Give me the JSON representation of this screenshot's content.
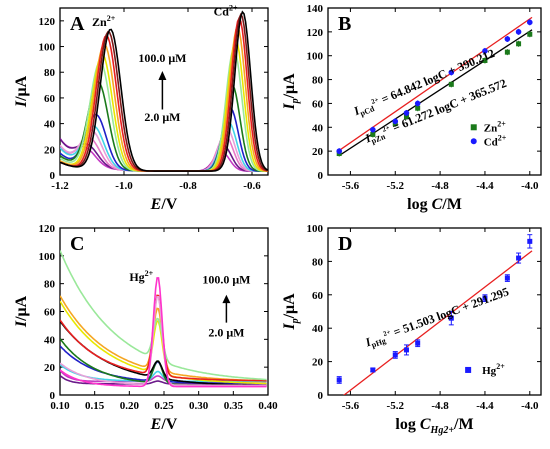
{
  "chart_data": [
    {
      "panel": "A",
      "type": "line",
      "xlabel_var": "E",
      "xlabel_unit": "/V",
      "ylabel_var": "I",
      "ylabel_unit": "/μA",
      "xlim": [
        -1.2,
        -0.55
      ],
      "ylim": [
        0,
        130
      ],
      "xticks": [
        -1.2,
        -1.0,
        -0.8,
        -0.6
      ],
      "xtick_labels": [
        "-1.2",
        "-1.0",
        "-0.8",
        "-0.6"
      ],
      "yticks": [
        0,
        20,
        40,
        60,
        80,
        100,
        120
      ],
      "yticks_labels": [
        "0",
        "20",
        "40",
        "60",
        "80",
        "100",
        "120"
      ],
      "peak_labels": [
        {
          "ion": "Zn",
          "charge": "2+",
          "x": -1.1,
          "y": 116
        },
        {
          "ion": "Cd",
          "charge": "2+",
          "x": -0.72,
          "y": 124
        }
      ],
      "conc_high": "100.0 μM",
      "conc_low": "2.0 μM",
      "series": [
        {
          "color": "#c43bc4",
          "p1": 12,
          "p2": 15,
          "b1": 25,
          "b2": 1
        },
        {
          "color": "#6b1a8a",
          "p1": 15,
          "p2": 20,
          "b1": 25,
          "b2": 1
        },
        {
          "color": "#e879c8",
          "p1": 22,
          "p2": 28,
          "b1": 18,
          "b2": 1
        },
        {
          "color": "#e8a0d8",
          "p1": 28,
          "p2": 33,
          "b1": 20,
          "b2": 1
        },
        {
          "color": "#43d4e8",
          "p1": 32,
          "p2": 38,
          "b1": 18,
          "b2": 1
        },
        {
          "color": "#2020c8",
          "p1": 42,
          "p2": 49,
          "b1": 14,
          "b2": 1
        },
        {
          "color": "#1b7a1b",
          "p1": 68,
          "p2": 67,
          "b1": 12,
          "b2": 1
        },
        {
          "color": "#9ae89a",
          "p1": 84,
          "p2": 95,
          "b1": 10,
          "b2": 1
        },
        {
          "color": "#e8e800",
          "p1": 90,
          "p2": 102,
          "b1": 8,
          "b2": 1
        },
        {
          "color": "#f5a623",
          "p1": 98,
          "p2": 112,
          "b1": 8,
          "b2": 1
        },
        {
          "color": "#e82020",
          "p1": 105,
          "p2": 119,
          "b1": 7,
          "b2": 1
        },
        {
          "color": "#7a1a1a",
          "p1": 108,
          "p2": 122,
          "b1": 7,
          "b2": 1
        },
        {
          "color": "#000000",
          "p1": 110,
          "p2": 124,
          "b1": 7,
          "b2": 1
        }
      ]
    },
    {
      "panel": "B",
      "type": "scatter",
      "xlabel_prefix": "log ",
      "xlabel_var": "C",
      "xlabel_unit": "/M",
      "ylabel_var": "I",
      "ylabel_sub": "p",
      "ylabel_unit": "/μA",
      "xlim": [
        -5.8,
        -3.9
      ],
      "ylim": [
        0,
        140
      ],
      "xticks": [
        -5.6,
        -5.2,
        -4.8,
        -4.4,
        -4.0
      ],
      "xtick_labels": [
        "-5.6",
        "-5.2",
        "-4.8",
        "-4.4",
        "-4.0"
      ],
      "yticks": [
        0,
        20,
        40,
        60,
        80,
        100,
        120,
        140
      ],
      "yticks_labels": [
        "0",
        "20",
        "40",
        "60",
        "80",
        "100",
        "120",
        "140"
      ],
      "equations": [
        {
          "prefix": "I",
          "sub": "pCd",
          "sup": "2+",
          "text": " = 64.842 logC + 390.212"
        },
        {
          "prefix": "I",
          "sub": "pZn",
          "sup": "2+",
          "text": " = 61.272 logC + 365.572"
        }
      ],
      "series": [
        {
          "name": "Zn",
          "sup": "2+",
          "color": "#1b7a1b",
          "marker": "square",
          "x": [
            -5.7,
            -5.4,
            -5.2,
            -5.1,
            -5.0,
            -4.7,
            -4.4,
            -4.2,
            -4.1,
            -4.0
          ],
          "y": [
            18,
            34,
            43,
            49,
            56,
            76,
            96,
            103,
            110,
            118
          ],
          "fit": [
            61.272,
            365.572
          ]
        },
        {
          "name": "Cd",
          "sup": "2+",
          "color": "#1a1aff",
          "marker": "circle",
          "x": [
            -5.7,
            -5.4,
            -5.2,
            -5.1,
            -5.0,
            -4.7,
            -4.4,
            -4.2,
            -4.1,
            -4.0
          ],
          "y": [
            20,
            38,
            45,
            52,
            60,
            86,
            104,
            114,
            120,
            128
          ],
          "fit": [
            64.842,
            390.212
          ]
        }
      ]
    },
    {
      "panel": "C",
      "type": "line",
      "xlabel_var": "E",
      "xlabel_unit": "/V",
      "ylabel_var": "I",
      "ylabel_unit": "/μA",
      "xlim": [
        0.1,
        0.4
      ],
      "ylim": [
        0,
        120
      ],
      "xticks": [
        0.1,
        0.15,
        0.2,
        0.25,
        0.3,
        0.35,
        0.4
      ],
      "xtick_labels": [
        "0.10",
        "0.15",
        "0.20",
        "0.25",
        "0.30",
        "0.35",
        "0.40"
      ],
      "yticks": [
        0,
        20,
        40,
        60,
        80,
        100,
        120
      ],
      "yticks_labels": [
        "0",
        "20",
        "40",
        "60",
        "80",
        "100",
        "120"
      ],
      "peak_label": {
        "ion": "Hg",
        "charge": "2+",
        "x": 0.2,
        "y": 82
      },
      "conc_high": "100.0 μM",
      "conc_low": "2.0 μM",
      "series": [
        {
          "color": "#6b1a8a",
          "p": 2,
          "b": 14,
          "k": 0.003
        },
        {
          "color": "#c43bc4",
          "p": 4,
          "b": 16,
          "k": 0.003
        },
        {
          "color": "#43d4e8",
          "p": 7,
          "b": 20,
          "k": 0.02
        },
        {
          "color": "#2020c8",
          "p": 14,
          "b": 35,
          "k": 0.04
        },
        {
          "color": "#1b7a1b",
          "p": 16,
          "b": 42,
          "k": 0.04
        },
        {
          "color": "#000000",
          "p": 12,
          "b": 55,
          "k": 0.06
        },
        {
          "color": "#e8e800",
          "p": 38,
          "b": 68,
          "k": 0.06
        },
        {
          "color": "#f5a623",
          "p": 45,
          "b": 70,
          "k": 0.06
        },
        {
          "color": "#e82020",
          "p": 58,
          "b": 52,
          "k": 0.05
        },
        {
          "color": "#9ae89a",
          "p": 30,
          "b": 103,
          "k": 0.07
        },
        {
          "color": "#e8a0d8",
          "p": 64,
          "b": 24,
          "k": 0.03
        },
        {
          "color": "#ff33cc",
          "p": 79,
          "b": 20,
          "k": 0.02
        }
      ]
    },
    {
      "panel": "D",
      "type": "scatter",
      "xlabel_prefix": "log ",
      "xlabel_var": "C",
      "xlabel_sub": "Hg2+",
      "xlabel_unit": "/M",
      "ylabel_var": "I",
      "ylabel_sub": "p",
      "ylabel_unit": "/μA",
      "xlim": [
        -5.8,
        -3.9
      ],
      "ylim": [
        0,
        100
      ],
      "xticks": [
        -5.6,
        -5.2,
        -4.8,
        -4.4,
        -4.0
      ],
      "xtick_labels": [
        "-5.6",
        "-5.2",
        "-4.8",
        "-4.4",
        "-4.0"
      ],
      "yticks": [
        0,
        20,
        40,
        60,
        80,
        100
      ],
      "yticks_labels": [
        "0",
        "20",
        "40",
        "60",
        "80",
        "100"
      ],
      "equations": [
        {
          "prefix": "I",
          "sub": "pHg",
          "sup": "2+",
          "text": " = 51.503 logC + 291.295"
        }
      ],
      "series": [
        {
          "name": "Hg",
          "sup": "2+",
          "color": "#1a1aff",
          "marker": "square",
          "x": [
            -5.7,
            -5.4,
            -5.2,
            -5.1,
            -5.0,
            -4.7,
            -4.4,
            -4.2,
            -4.1,
            -4.0
          ],
          "y": [
            9,
            15,
            24,
            27,
            31,
            46,
            58,
            70,
            82,
            92
          ],
          "err": [
            2,
            1,
            2,
            3,
            2,
            4,
            2,
            2,
            3,
            4
          ],
          "fit": [
            51.503,
            291.295
          ]
        }
      ]
    }
  ]
}
